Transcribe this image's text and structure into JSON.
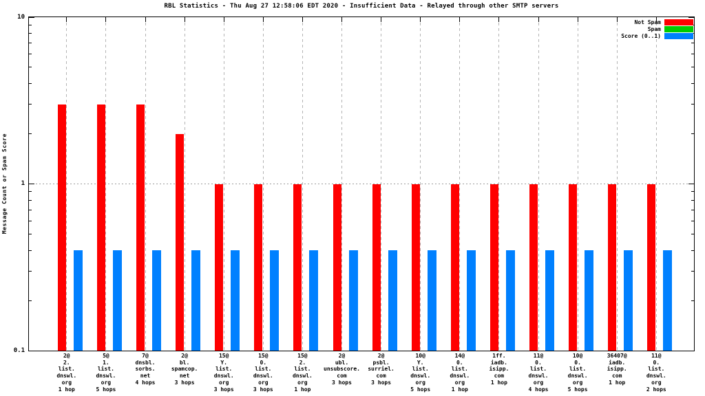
{
  "chart_data": {
    "type": "bar",
    "title": "RBL Statistics - Thu Aug 27 12:58:06 EDT 2020 - Insufficient Data - Relayed through other SMTP servers",
    "ylabel": "Message Count or Spam Score",
    "yscale": "log",
    "ylim": [
      0.1,
      10
    ],
    "yticks": [
      {
        "label": "10",
        "value": 10
      },
      {
        "label": "1",
        "value": 1
      },
      {
        "label": "0.1",
        "value": 0.1
      }
    ],
    "grid": {
      "y_at": 1,
      "x_dashed_at_each_category": true
    },
    "legend_position": "top-right",
    "background": "#ffffff",
    "categories": [
      [
        "2@",
        "2.",
        "list.",
        "dnswl.",
        "org",
        "1 hop"
      ],
      [
        "5@",
        "1.",
        "list.",
        "dnswl.",
        "org",
        "5 hops"
      ],
      [
        "7@",
        "dnsbl.",
        "sorbs.",
        "net",
        "4 hops"
      ],
      [
        "2@",
        "bl.",
        "spamcop.",
        "net",
        "3 hops"
      ],
      [
        "15@",
        "Y.",
        "list.",
        "dnswl.",
        "org",
        "3 hops"
      ],
      [
        "15@",
        "0.",
        "list.",
        "dnswl.",
        "org",
        "3 hops"
      ],
      [
        "15@",
        "2.",
        "list.",
        "dnswl.",
        "org",
        "1 hop"
      ],
      [
        "2@",
        "ubl.",
        "unsubscore.",
        "com",
        "3 hops"
      ],
      [
        "2@",
        "psbl.",
        "surriel.",
        "com",
        "3 hops"
      ],
      [
        "10@",
        "Y.",
        "list.",
        "dnswl.",
        "org",
        "5 hops"
      ],
      [
        "14@",
        "0.",
        "list.",
        "dnswl.",
        "org",
        "1 hop"
      ],
      [
        "1ff.",
        "iadb.",
        "isipp.",
        "com",
        "1 hop"
      ],
      [
        "11@",
        "0.",
        "list.",
        "dnswl.",
        "org",
        "4 hops"
      ],
      [
        "10@",
        "0.",
        "list.",
        "dnswl.",
        "org",
        "5 hops"
      ],
      [
        "36407@",
        "iadb.",
        "isipp.",
        "com",
        "1 hop"
      ],
      [
        "11@",
        "0.",
        "list.",
        "dnswl.",
        "org",
        "2 hops"
      ]
    ],
    "series": [
      {
        "name": "Not Spam",
        "color": "#ff0000",
        "values": [
          3,
          3,
          3,
          2,
          1,
          1,
          1,
          1,
          1,
          1,
          1,
          1,
          1,
          1,
          1,
          1
        ]
      },
      {
        "name": "Spam",
        "color": "#00cc00",
        "values": [
          0,
          0,
          0,
          0,
          0,
          0,
          0,
          0,
          0,
          0,
          0,
          0,
          0,
          0,
          0,
          0
        ]
      },
      {
        "name": "Score (0..1)",
        "color": "#0080ff",
        "values": [
          0.4,
          0.4,
          0.4,
          0.4,
          0.4,
          0.4,
          0.4,
          0.4,
          0.4,
          0.4,
          0.4,
          0.4,
          0.4,
          0.4,
          0.4,
          0.4
        ]
      }
    ]
  }
}
